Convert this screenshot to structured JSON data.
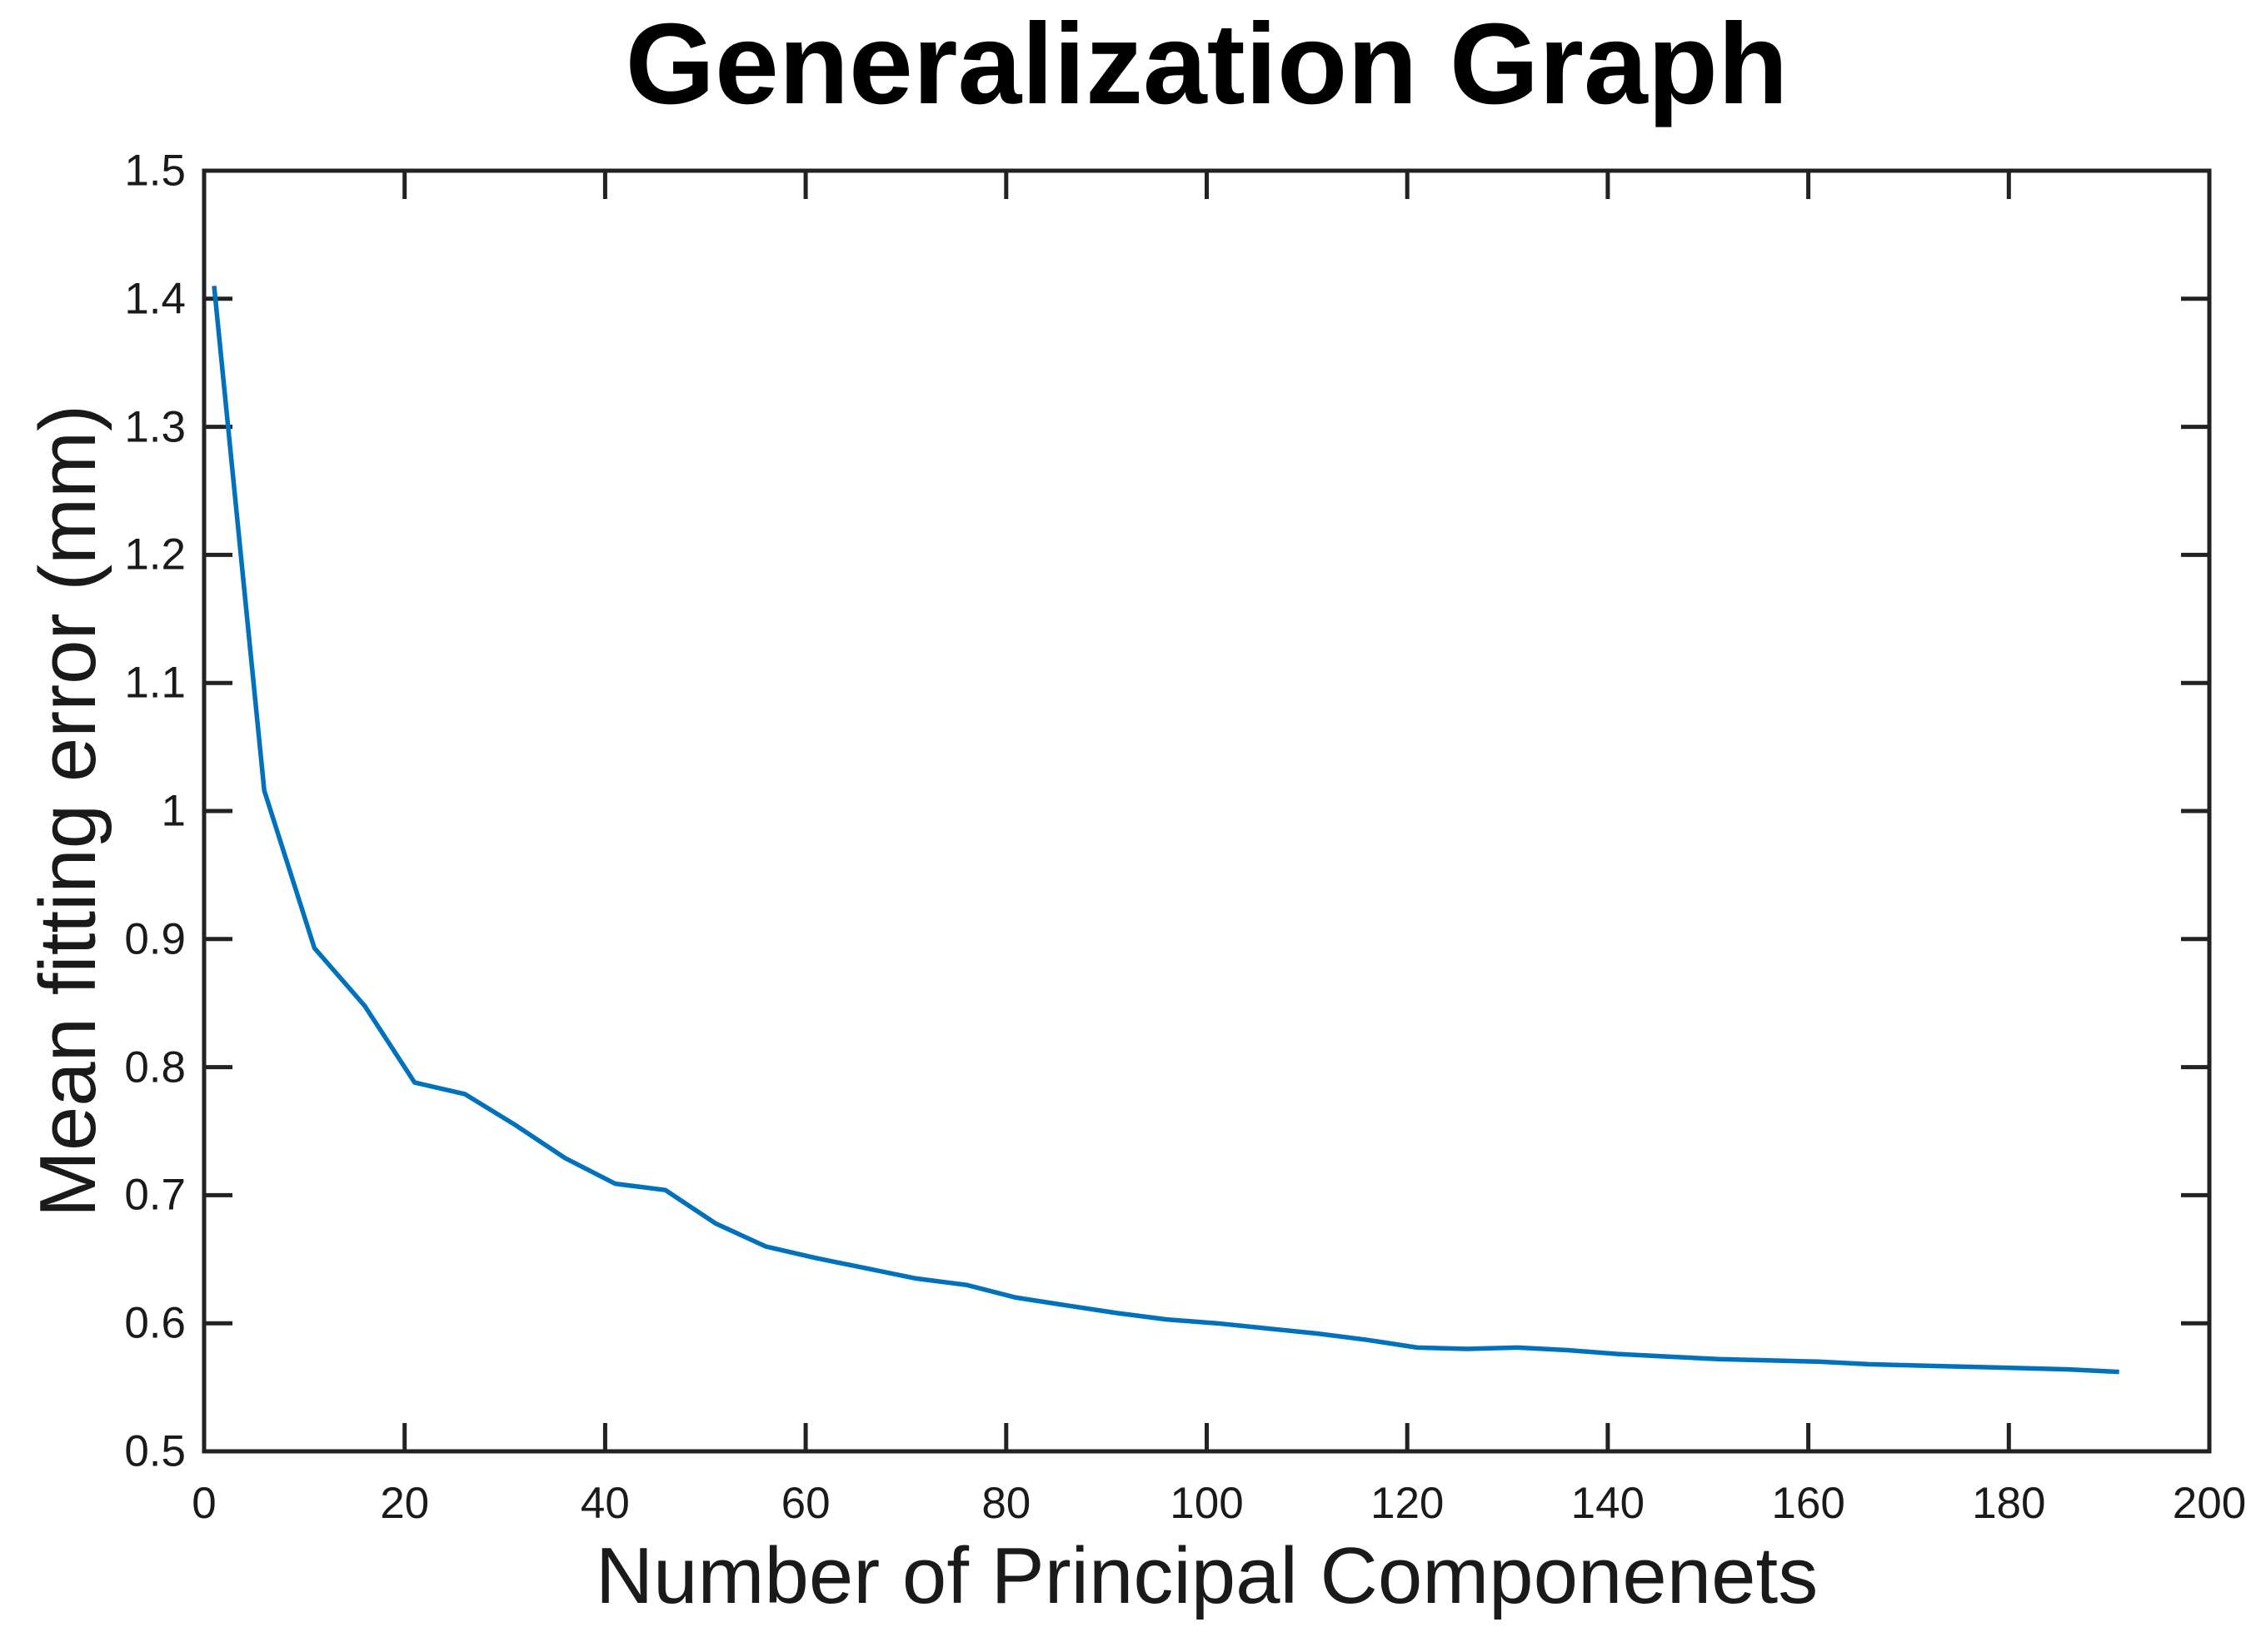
{
  "chart_data": {
    "type": "line",
    "title": "Generalization Graph",
    "xlabel": "Number of Principal Componenets",
    "ylabel": "Mean fitting error (mm)",
    "xlim": [
      0,
      200
    ],
    "ylim": [
      0.5,
      1.5
    ],
    "grid": false,
    "legend": "none",
    "box": true,
    "x_ticks": [
      0,
      20,
      40,
      60,
      80,
      100,
      120,
      140,
      160,
      180,
      200
    ],
    "x_tick_labels": [
      "0",
      "20",
      "40",
      "60",
      "80",
      "100",
      "120",
      "140",
      "160",
      "180",
      "200"
    ],
    "y_ticks": [
      0.5,
      0.6,
      0.7,
      0.8,
      0.9,
      1.0,
      1.1,
      1.2,
      1.3,
      1.4,
      1.5
    ],
    "y_tick_labels": [
      "0.5",
      "0.6",
      "0.7",
      "0.8",
      "0.9",
      "1",
      "1.1",
      "1.2",
      "1.3",
      "1.4",
      "1.5"
    ],
    "line_color": "#0072BD",
    "axis_color": "#222222",
    "series": [
      {
        "name": "mean-fitting-error",
        "x": [
          1,
          6,
          11,
          16,
          21,
          26,
          31,
          36,
          41,
          46,
          51,
          56,
          61,
          66,
          71,
          76,
          81,
          86,
          91,
          96,
          101,
          106,
          111,
          116,
          121,
          126,
          131,
          136,
          141,
          146,
          151,
          156,
          161,
          166,
          171,
          176,
          181,
          186,
          191
        ],
        "y": [
          1.41,
          1.016,
          0.893,
          0.848,
          0.788,
          0.779,
          0.755,
          0.729,
          0.709,
          0.704,
          0.678,
          0.66,
          0.651,
          0.643,
          0.635,
          0.63,
          0.62,
          0.614,
          0.608,
          0.603,
          0.6,
          0.596,
          0.592,
          0.587,
          0.581,
          0.58,
          0.581,
          0.579,
          0.576,
          0.574,
          0.572,
          0.571,
          0.57,
          0.568,
          0.567,
          0.566,
          0.565,
          0.564,
          0.562
        ]
      }
    ]
  }
}
